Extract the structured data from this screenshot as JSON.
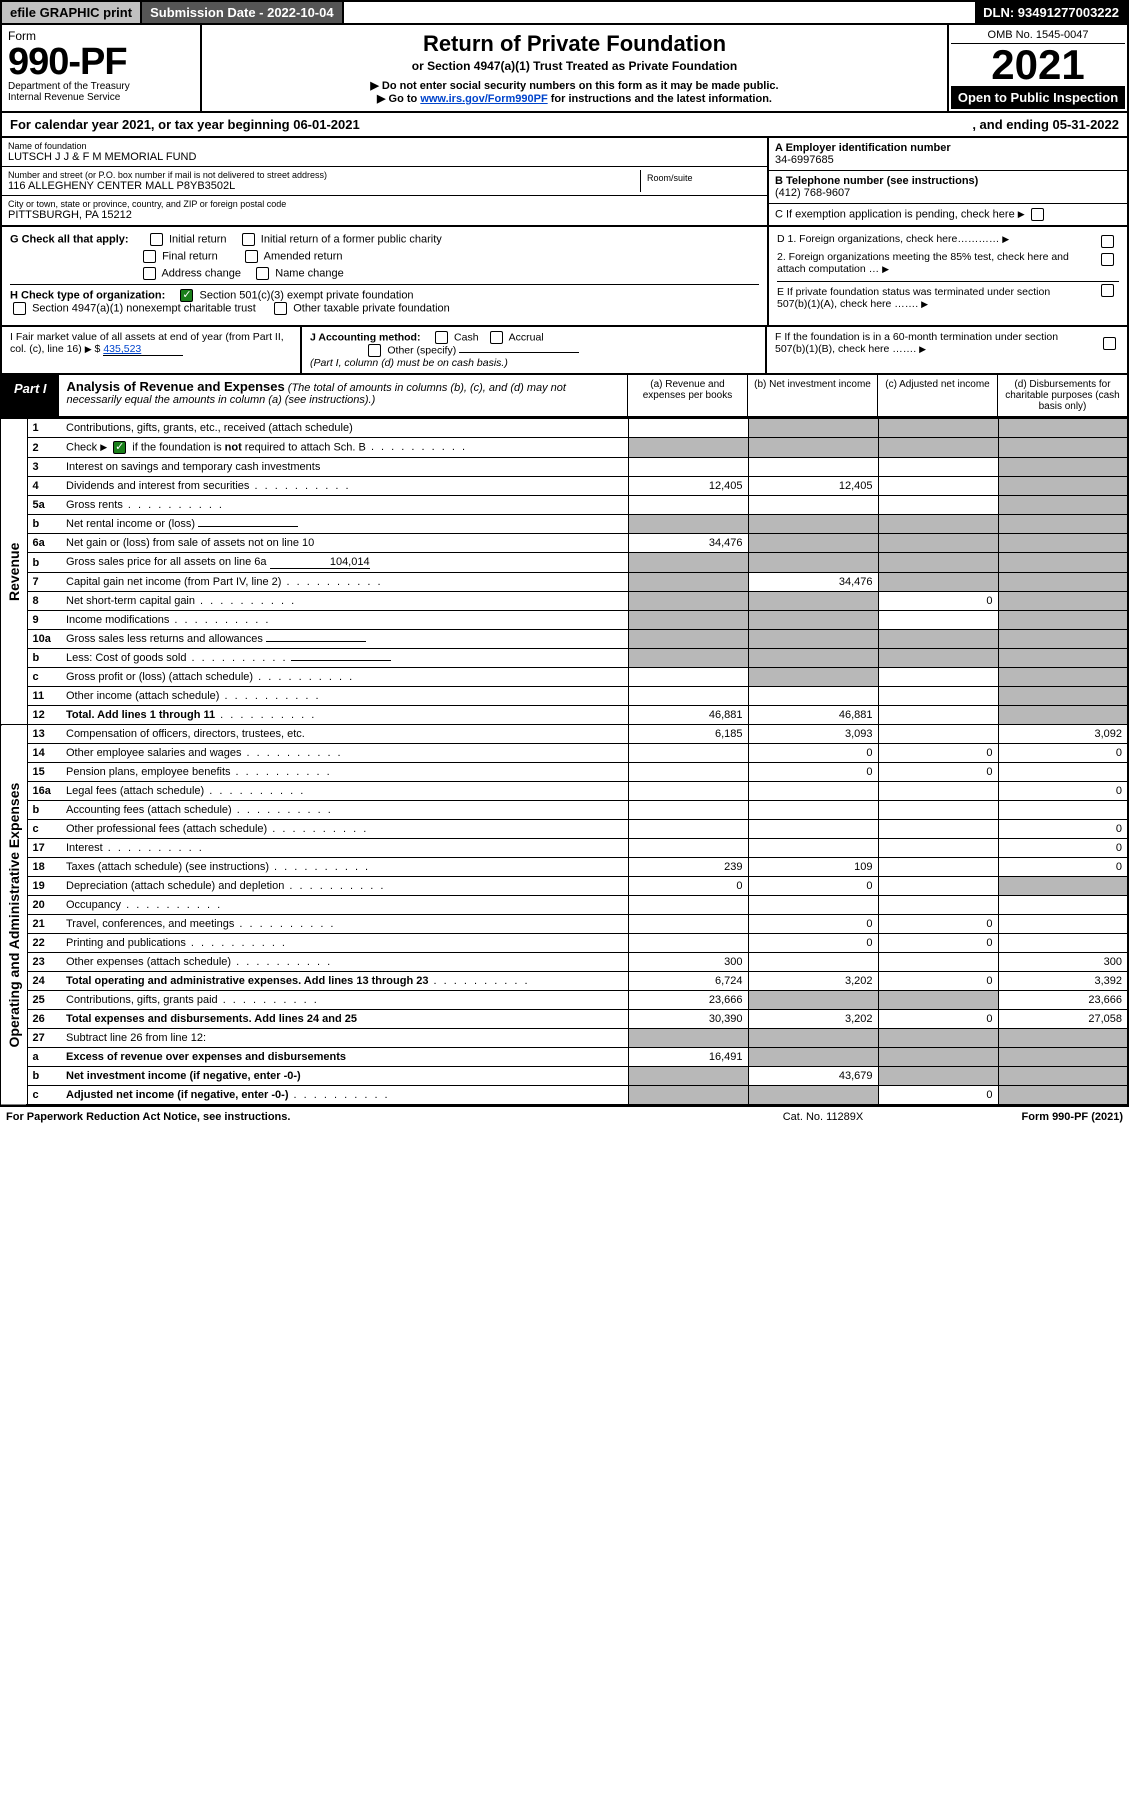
{
  "topbar": {
    "efile": "efile GRAPHIC print",
    "submission": "Submission Date - 2022-10-04",
    "dln": "DLN: 93491277003222"
  },
  "header": {
    "form_label": "Form",
    "form_no": "990-PF",
    "dept": "Department of the Treasury",
    "irs": "Internal Revenue Service",
    "title": "Return of Private Foundation",
    "subtitle": "or Section 4947(a)(1) Trust Treated as Private Foundation",
    "note1": "▶ Do not enter social security numbers on this form as it may be made public.",
    "note2_pre": "▶ Go to ",
    "note2_link": "www.irs.gov/Form990PF",
    "note2_post": " for instructions and the latest information.",
    "omb": "OMB No. 1545-0047",
    "year": "2021",
    "inspect": "Open to Public Inspection"
  },
  "year_line": {
    "text1": "For calendar year 2021, or tax year beginning 06-01-2021",
    "text2": ", and ending 05-31-2022"
  },
  "info": {
    "name_label": "Name of foundation",
    "name": "LUTSCH J J & F M MEMORIAL FUND",
    "addr_label": "Number and street (or P.O. box number if mail is not delivered to street address)",
    "addr": "116 ALLEGHENY CENTER MALL P8YB3502L",
    "room_label": "Room/suite",
    "city_label": "City or town, state or province, country, and ZIP or foreign postal code",
    "city": "PITTSBURGH, PA  15212",
    "a_label": "A Employer identification number",
    "a_val": "34-6997685",
    "b_label": "B Telephone number (see instructions)",
    "b_val": "(412) 768-9607",
    "c_label": "C If exemption application is pending, check here"
  },
  "checks": {
    "g_label": "G Check all that apply:",
    "g_opts": [
      "Initial return",
      "Initial return of a former public charity",
      "Final return",
      "Amended return",
      "Address change",
      "Name change"
    ],
    "h_label": "H Check type of organization:",
    "h_opt1": "Section 501(c)(3) exempt private foundation",
    "h_opt2": "Section 4947(a)(1) nonexempt charitable trust",
    "h_opt3": "Other taxable private foundation",
    "d1": "D 1. Foreign organizations, check here…………",
    "d2": "2. Foreign organizations meeting the 85% test, check here and attach computation …",
    "e": "E  If private foundation status was terminated under section 507(b)(1)(A), check here …….",
    "i_label": "I Fair market value of all assets at end of year (from Part II, col. (c), line 16)",
    "i_val": "435,523",
    "j_label": "J Accounting method:",
    "j_cash": "Cash",
    "j_accrual": "Accrual",
    "j_other": "Other (specify)",
    "j_note": "(Part I, column (d) must be on cash basis.)",
    "f": "F  If the foundation is in a 60-month termination under section 507(b)(1)(B), check here ……."
  },
  "part1": {
    "label": "Part I",
    "title": "Analysis of Revenue and Expenses",
    "title_note": "(The total of amounts in columns (b), (c), and (d) may not necessarily equal the amounts in column (a) (see instructions).)",
    "col_a": "(a)   Revenue and expenses per books",
    "col_b": "(b)   Net investment income",
    "col_c": "(c)   Adjusted net income",
    "col_d": "(d)  Disbursements for charitable purposes (cash basis only)"
  },
  "sidelabels": {
    "revenue": "Revenue",
    "expenses": "Operating and Administrative Expenses"
  },
  "rows": [
    {
      "no": "1",
      "desc": "Contributions, gifts, grants, etc., received (attach schedule)",
      "a": "",
      "b": "shade",
      "c": "shade",
      "d": "shade"
    },
    {
      "no": "2",
      "desc": "Check ▶ ☑ if the foundation is not required to attach Sch. B",
      "dots": true,
      "a": "shade",
      "b": "shade",
      "c": "shade",
      "d": "shade"
    },
    {
      "no": "3",
      "desc": "Interest on savings and temporary cash investments",
      "a": "",
      "b": "",
      "c": "",
      "d": "shade"
    },
    {
      "no": "4",
      "desc": "Dividends and interest from securities",
      "dots": true,
      "a": "12,405",
      "b": "12,405",
      "c": "",
      "d": "shade"
    },
    {
      "no": "5a",
      "desc": "Gross rents",
      "dots": true,
      "a": "",
      "b": "",
      "c": "",
      "d": "shade"
    },
    {
      "no": "b",
      "desc": "Net rental income or (loss)",
      "inline": "",
      "a": "shade",
      "b": "shade",
      "c": "shade",
      "d": "shade"
    },
    {
      "no": "6a",
      "desc": "Net gain or (loss) from sale of assets not on line 10",
      "a": "34,476",
      "b": "shade",
      "c": "shade",
      "d": "shade"
    },
    {
      "no": "b",
      "desc": "Gross sales price for all assets on line 6a",
      "inline": "104,014",
      "a": "shade",
      "b": "shade",
      "c": "shade",
      "d": "shade"
    },
    {
      "no": "7",
      "desc": "Capital gain net income (from Part IV, line 2)",
      "dots": true,
      "a": "shade",
      "b": "34,476",
      "c": "shade",
      "d": "shade"
    },
    {
      "no": "8",
      "desc": "Net short-term capital gain",
      "dots": true,
      "a": "shade",
      "b": "shade",
      "c": "0",
      "d": "shade"
    },
    {
      "no": "9",
      "desc": "Income modifications",
      "dots": true,
      "a": "shade",
      "b": "shade",
      "c": "",
      "d": "shade"
    },
    {
      "no": "10a",
      "desc": "Gross sales less returns and allowances",
      "inline": "",
      "a": "shade",
      "b": "shade",
      "c": "shade",
      "d": "shade"
    },
    {
      "no": "b",
      "desc": "Less: Cost of goods sold",
      "dots": true,
      "inline": "",
      "a": "shade",
      "b": "shade",
      "c": "shade",
      "d": "shade"
    },
    {
      "no": "c",
      "desc": "Gross profit or (loss) (attach schedule)",
      "dots": true,
      "a": "",
      "b": "shade",
      "c": "",
      "d": "shade"
    },
    {
      "no": "11",
      "desc": "Other income (attach schedule)",
      "dots": true,
      "a": "",
      "b": "",
      "c": "",
      "d": "shade"
    },
    {
      "no": "12",
      "desc": "Total. Add lines 1 through 11",
      "dots": true,
      "bold": true,
      "a": "46,881",
      "b": "46,881",
      "c": "",
      "d": "shade"
    },
    {
      "no": "13",
      "desc": "Compensation of officers, directors, trustees, etc.",
      "a": "6,185",
      "b": "3,093",
      "c": "",
      "d": "3,092"
    },
    {
      "no": "14",
      "desc": "Other employee salaries and wages",
      "dots": true,
      "a": "",
      "b": "0",
      "c": "0",
      "d": "0"
    },
    {
      "no": "15",
      "desc": "Pension plans, employee benefits",
      "dots": true,
      "a": "",
      "b": "0",
      "c": "0",
      "d": ""
    },
    {
      "no": "16a",
      "desc": "Legal fees (attach schedule)",
      "dots": true,
      "a": "",
      "b": "",
      "c": "",
      "d": "0"
    },
    {
      "no": "b",
      "desc": "Accounting fees (attach schedule)",
      "dots": true,
      "a": "",
      "b": "",
      "c": "",
      "d": ""
    },
    {
      "no": "c",
      "desc": "Other professional fees (attach schedule)",
      "dots": true,
      "a": "",
      "b": "",
      "c": "",
      "d": "0"
    },
    {
      "no": "17",
      "desc": "Interest",
      "dots": true,
      "a": "",
      "b": "",
      "c": "",
      "d": "0"
    },
    {
      "no": "18",
      "desc": "Taxes (attach schedule) (see instructions)",
      "dots": true,
      "a": "239",
      "b": "109",
      "c": "",
      "d": "0"
    },
    {
      "no": "19",
      "desc": "Depreciation (attach schedule) and depletion",
      "dots": true,
      "a": "0",
      "b": "0",
      "c": "",
      "d": "shade"
    },
    {
      "no": "20",
      "desc": "Occupancy",
      "dots": true,
      "a": "",
      "b": "",
      "c": "",
      "d": ""
    },
    {
      "no": "21",
      "desc": "Travel, conferences, and meetings",
      "dots": true,
      "a": "",
      "b": "0",
      "c": "0",
      "d": ""
    },
    {
      "no": "22",
      "desc": "Printing and publications",
      "dots": true,
      "a": "",
      "b": "0",
      "c": "0",
      "d": ""
    },
    {
      "no": "23",
      "desc": "Other expenses (attach schedule)",
      "dots": true,
      "a": "300",
      "b": "",
      "c": "",
      "d": "300"
    },
    {
      "no": "24",
      "desc": "Total operating and administrative expenses. Add lines 13 through 23",
      "dots": true,
      "bold": true,
      "a": "6,724",
      "b": "3,202",
      "c": "0",
      "d": "3,392"
    },
    {
      "no": "25",
      "desc": "Contributions, gifts, grants paid",
      "dots": true,
      "a": "23,666",
      "b": "shade",
      "c": "shade",
      "d": "23,666"
    },
    {
      "no": "26",
      "desc": "Total expenses and disbursements. Add lines 24 and 25",
      "bold": true,
      "a": "30,390",
      "b": "3,202",
      "c": "0",
      "d": "27,058"
    },
    {
      "no": "27",
      "desc": "Subtract line 26 from line 12:",
      "a": "shade",
      "b": "shade",
      "c": "shade",
      "d": "shade"
    },
    {
      "no": "a",
      "desc": "Excess of revenue over expenses and disbursements",
      "bold": true,
      "a": "16,491",
      "b": "shade",
      "c": "shade",
      "d": "shade"
    },
    {
      "no": "b",
      "desc": "Net investment income (if negative, enter -0-)",
      "bold": true,
      "a": "shade",
      "b": "43,679",
      "c": "shade",
      "d": "shade"
    },
    {
      "no": "c",
      "desc": "Adjusted net income (if negative, enter -0-)",
      "dots": true,
      "bold": true,
      "a": "shade",
      "b": "shade",
      "c": "0",
      "d": "shade"
    }
  ],
  "footer": {
    "left": "For Paperwork Reduction Act Notice, see instructions.",
    "mid": "Cat. No. 11289X",
    "right": "Form 990-PF (2021)"
  },
  "colors": {
    "shade": "#b8b8b8",
    "black": "#000000",
    "link": "#0044cc",
    "check_green": "#1a7f1a"
  }
}
